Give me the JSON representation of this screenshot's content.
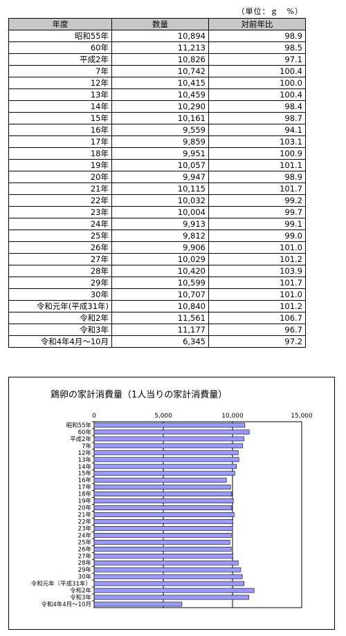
{
  "table": {
    "unit_label": "（単位：ｇ　%）",
    "headers": [
      "年度",
      "数量",
      "対前年比"
    ],
    "rows": [
      [
        "昭和55年",
        "10,894",
        "98.9"
      ],
      [
        "60年",
        "11,213",
        "98.5"
      ],
      [
        "平成2年",
        "10,826",
        "97.1"
      ],
      [
        "7年",
        "10,742",
        "100.4"
      ],
      [
        "12年",
        "10,415",
        "100.0"
      ],
      [
        "13年",
        "10,459",
        "100.4"
      ],
      [
        "14年",
        "10,290",
        "98.4"
      ],
      [
        "15年",
        "10,161",
        "98.7"
      ],
      [
        "16年",
        "9,559",
        "94.1"
      ],
      [
        "17年",
        "9,859",
        "103.1"
      ],
      [
        "18年",
        "9,951",
        "100.9"
      ],
      [
        "19年",
        "10,057",
        "101.1"
      ],
      [
        "20年",
        "9,947",
        "98.9"
      ],
      [
        "21年",
        "10,115",
        "101.7"
      ],
      [
        "22年",
        "10,032",
        "99.2"
      ],
      [
        "23年",
        "10,004",
        "99.7"
      ],
      [
        "24年",
        "9,913",
        "99.1"
      ],
      [
        "25年",
        "9,812",
        "99.0"
      ],
      [
        "26年",
        "9,906",
        "101.0"
      ],
      [
        "27年",
        "10,029",
        "101.2"
      ],
      [
        "28年",
        "10,420",
        "103.9"
      ],
      [
        "29年",
        "10,599",
        "101.7"
      ],
      [
        "30年",
        "10,707",
        "101.0"
      ],
      [
        "令和元年(平成31年)",
        "10,840",
        "101.2"
      ],
      [
        "令和2年",
        "11,561",
        "106.7"
      ],
      [
        "令和3年",
        "11,177",
        "96.7"
      ],
      [
        "令和4年4月～10月",
        "6,345",
        "97.2"
      ]
    ]
  },
  "chart_data": {
    "type": "bar",
    "orientation": "horizontal",
    "title": "鶏卵の家計消費量（1人当りの家計消費量）",
    "xlim": [
      0,
      15000
    ],
    "x_ticks": [
      "0",
      "5,000",
      "10,000",
      "15,000"
    ],
    "x_tick_values": [
      0,
      5000,
      10000,
      15000
    ],
    "grid": "vertical",
    "bar_color": "#9999ff",
    "categories": [
      "昭和55年",
      "60年",
      "平成2年",
      "7年",
      "12年",
      "13年",
      "14年",
      "15年",
      "16年",
      "17年",
      "18年",
      "19年",
      "20年",
      "21年",
      "22年",
      "23年",
      "24年",
      "25年",
      "26年",
      "27年",
      "28年",
      "29年",
      "30年",
      "令和元年（平成31年）",
      "令和2年",
      "令和3年",
      "令和4年4月～10月"
    ],
    "values": [
      10894,
      11213,
      10826,
      10742,
      10415,
      10459,
      10290,
      10161,
      9559,
      9859,
      9951,
      10057,
      9947,
      10115,
      10032,
      10004,
      9913,
      9812,
      9906,
      10029,
      10420,
      10599,
      10707,
      10840,
      11561,
      11177,
      6345
    ]
  }
}
